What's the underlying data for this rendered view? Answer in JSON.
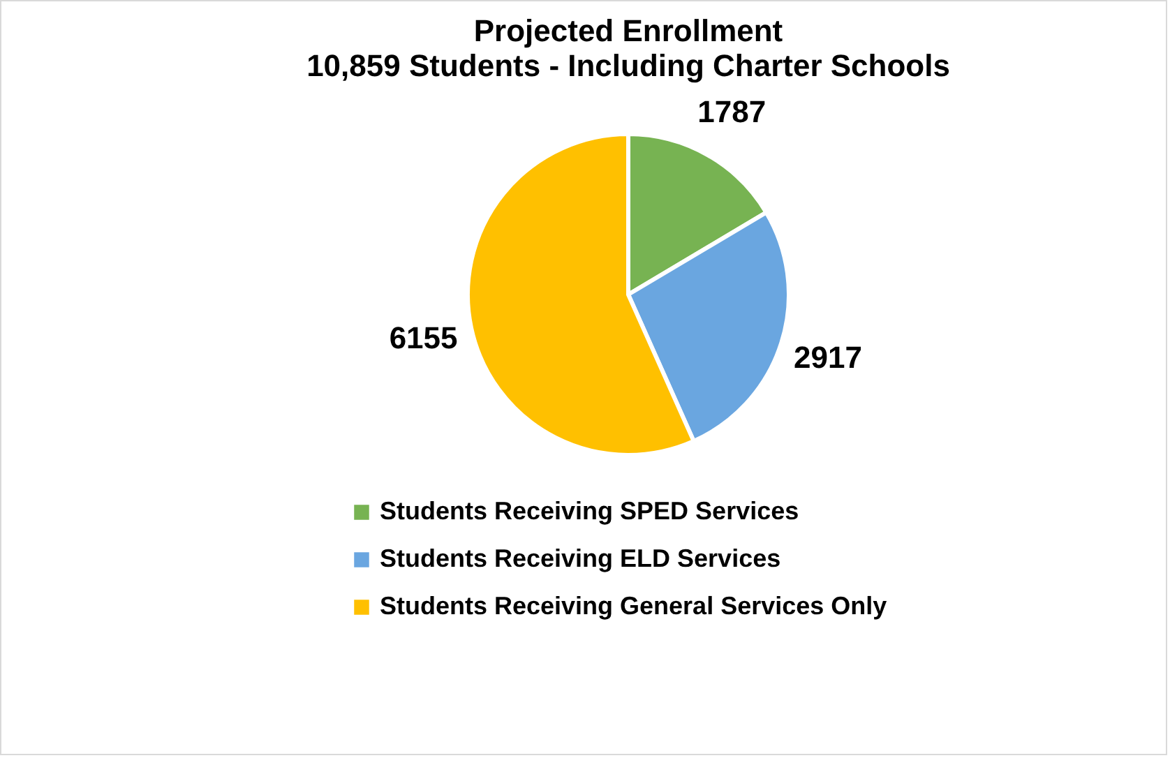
{
  "chart_data": {
    "type": "pie",
    "title": "Projected Enrollment",
    "subtitle": "10,859 Students - Including Charter Schools",
    "categories": [
      "Students Receiving SPED Services",
      "Students Receiving ELD Services",
      "Students Receiving General Services Only"
    ],
    "values": [
      1787,
      2917,
      6155
    ],
    "colors": [
      "#77b352",
      "#6aa6e0",
      "#ffc000"
    ],
    "data_labels": true,
    "legend": "bottom"
  }
}
